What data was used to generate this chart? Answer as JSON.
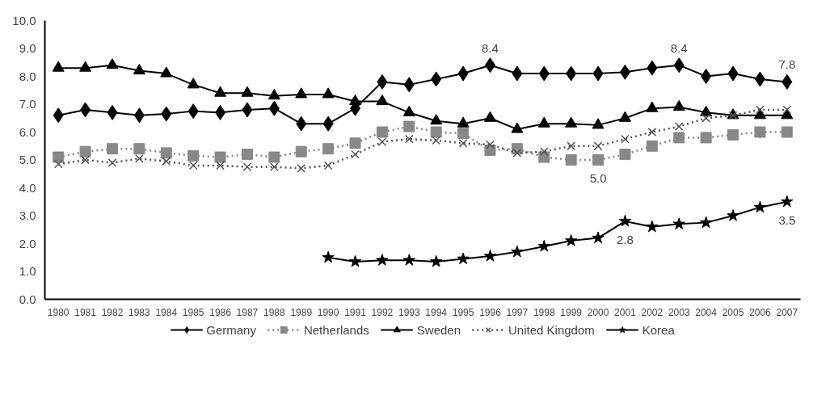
{
  "chart_data": {
    "type": "line",
    "categories": [
      "1980",
      "1981",
      "1982",
      "1983",
      "1984",
      "1985",
      "1986",
      "1987",
      "1988",
      "1989",
      "1990",
      "1991",
      "1992",
      "1993",
      "1994",
      "1995",
      "1996",
      "1997",
      "1998",
      "1999",
      "2000",
      "2001",
      "2002",
      "2003",
      "2004",
      "2005",
      "2006",
      "2007"
    ],
    "series": [
      {
        "name": "Germany",
        "color": "#000000",
        "marker": "diamond",
        "line_style": "solid",
        "values": [
          6.6,
          6.8,
          6.7,
          6.6,
          6.65,
          6.75,
          6.7,
          6.8,
          6.85,
          6.3,
          6.3,
          6.85,
          7.8,
          7.7,
          7.9,
          8.1,
          8.4,
          8.1,
          8.1,
          8.1,
          8.1,
          8.15,
          8.3,
          8.4,
          8.0,
          8.1,
          7.9,
          7.8
        ]
      },
      {
        "name": "Netherlands",
        "color": "#888888",
        "marker": "square",
        "line_style": "dotted",
        "values": [
          5.1,
          5.3,
          5.4,
          5.4,
          5.25,
          5.15,
          5.1,
          5.2,
          5.1,
          5.3,
          5.4,
          5.6,
          6.0,
          6.2,
          6.0,
          5.95,
          5.35,
          5.4,
          5.1,
          5.0,
          5.0,
          5.2,
          5.5,
          5.8,
          5.8,
          5.9,
          6.0,
          6.0
        ]
      },
      {
        "name": "Sweden",
        "color": "#000000",
        "marker": "triangle",
        "line_style": "solid",
        "values": [
          8.3,
          8.3,
          8.4,
          8.2,
          8.1,
          7.7,
          7.4,
          7.4,
          7.3,
          7.35,
          7.35,
          7.1,
          7.1,
          6.7,
          6.4,
          6.3,
          6.5,
          6.1,
          6.3,
          6.3,
          6.25,
          6.5,
          6.85,
          6.9,
          6.7,
          6.6,
          6.6,
          6.6
        ]
      },
      {
        "name": "United Kingdom",
        "color": "#555555",
        "marker": "cross",
        "line_style": "dotted",
        "values": [
          4.85,
          5.0,
          4.9,
          5.05,
          4.95,
          4.8,
          4.8,
          4.75,
          4.75,
          4.7,
          4.8,
          5.2,
          5.65,
          5.75,
          5.7,
          5.6,
          5.55,
          5.25,
          5.3,
          5.5,
          5.5,
          5.75,
          6.0,
          6.2,
          6.5,
          6.6,
          6.8,
          6.8
        ]
      },
      {
        "name": "Korea",
        "color": "#000000",
        "marker": "star",
        "line_style": "solid",
        "values": [
          null,
          null,
          null,
          null,
          null,
          null,
          null,
          null,
          null,
          null,
          1.5,
          1.35,
          1.4,
          1.4,
          1.35,
          1.45,
          1.55,
          1.7,
          1.9,
          2.1,
          2.2,
          2.8,
          2.6,
          2.7,
          2.75,
          3.0,
          3.3,
          3.5
        ]
      }
    ],
    "ylim": [
      0,
      10
    ],
    "yticks": [
      {
        "value": 0,
        "label": "0.0"
      },
      {
        "value": 1,
        "label": "1.0"
      },
      {
        "value": 2,
        "label": "2.0"
      },
      {
        "value": 3,
        "label": "3.0"
      },
      {
        "value": 4,
        "label": "4.0"
      },
      {
        "value": 5,
        "label": "5.0"
      },
      {
        "value": 6,
        "label": "6.0"
      },
      {
        "value": 7,
        "label": "7.0"
      },
      {
        "value": 8,
        "label": "8.0"
      },
      {
        "value": 9,
        "label": "9.0"
      },
      {
        "value": 10,
        "label": "10.0"
      }
    ],
    "annotations": [
      {
        "text": "8.4",
        "x": "1996",
        "y": 8.4
      },
      {
        "text": "8.4",
        "x": "2003",
        "y": 8.4
      },
      {
        "text": "7.8",
        "x": "2007",
        "y": 7.8
      },
      {
        "text": "5.0",
        "x": "2000",
        "y": 5.0
      },
      {
        "text": "2.8",
        "x": "2001",
        "y": 2.8
      },
      {
        "text": "3.5",
        "x": "2007",
        "y": 3.5
      }
    ],
    "grid": false,
    "legend": "bottom"
  }
}
